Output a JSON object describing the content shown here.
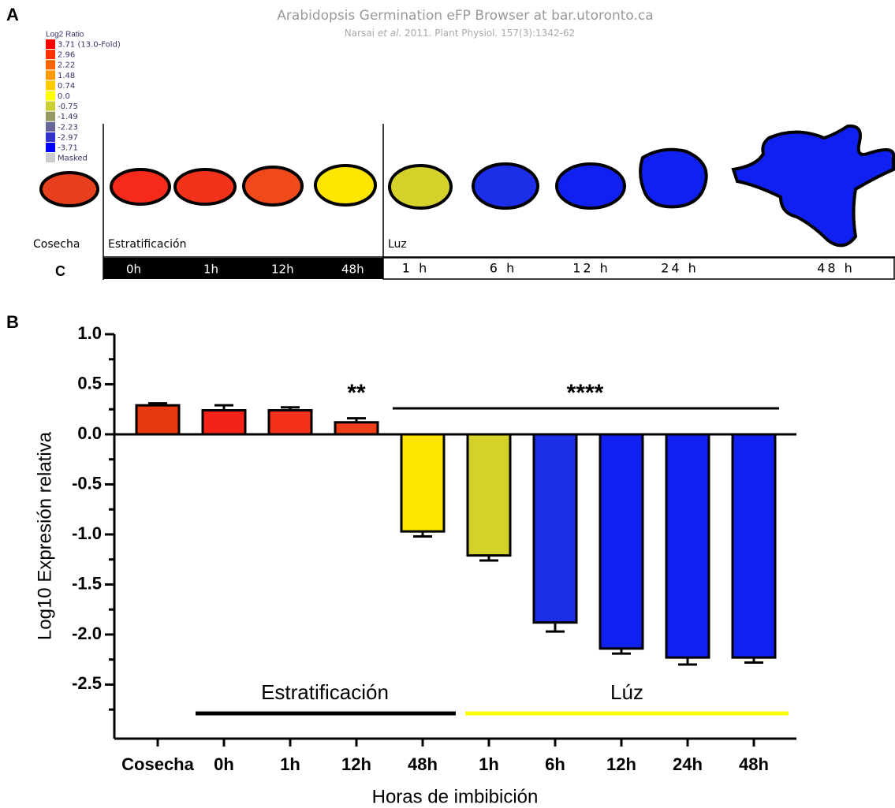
{
  "panel_a": {
    "letter": "A",
    "title": "Arabidopsis Germination eFP Browser at bar.utoronto.ca",
    "citation": [
      "Narsai ",
      "et al",
      ". 2011. Plant Physiol. 157(3):1342-62"
    ],
    "legend_title": "Log2 Ratio",
    "legend": [
      {
        "label": "3.71  (13.0-Fold)",
        "color": "#ff0000"
      },
      {
        "label": "2.96",
        "color": "#ff3300"
      },
      {
        "label": "2.22",
        "color": "#ff6600"
      },
      {
        "label": "1.48",
        "color": "#ff9900"
      },
      {
        "label": "0.74",
        "color": "#ffcc00"
      },
      {
        "label": "0.0",
        "color": "#ffff00"
      },
      {
        "label": "-0.75",
        "color": "#cccc33"
      },
      {
        "label": "-1.49",
        "color": "#999966"
      },
      {
        "label": "-2.23",
        "color": "#666699"
      },
      {
        "label": "-2.97",
        "color": "#3333cc"
      },
      {
        "label": "-3.71",
        "color": "#0000ff"
      },
      {
        "label": "Masked",
        "color": "#cccccc"
      }
    ],
    "groups": [
      "Cosecha",
      "Estratificación",
      "Luz"
    ],
    "row_label": "C",
    "strat_times": [
      "0h",
      "1h",
      "12h",
      "48h"
    ],
    "light_times": [
      "1 h",
      "6 h",
      "12 h",
      "24 h",
      "48 h"
    ]
  },
  "chart_data": {
    "type": "bar",
    "letter": "B",
    "y_label": "Log10 Expresión relativa",
    "x_label": "Horas de imbibición",
    "categories": [
      "Cosecha",
      "0h",
      "1h",
      "12h",
      "48h",
      "1h",
      "6h",
      "12h",
      "24h",
      "48h"
    ],
    "values": [
      0.29,
      0.24,
      0.24,
      0.12,
      -0.97,
      -1.21,
      -1.88,
      -2.14,
      -2.23,
      -2.23
    ],
    "errors": [
      0.02,
      0.05,
      0.03,
      0.04,
      0.05,
      0.05,
      0.09,
      0.05,
      0.07,
      0.05
    ],
    "colors": [
      "#e8380f",
      "#f5221a",
      "#f5301a",
      "#ef3f1a",
      "#ffe600",
      "#d4d22a",
      "#1c2ee8",
      "#1020f0",
      "#1020f0",
      "#1020f0"
    ],
    "ylim": [
      -3.04,
      1.0
    ],
    "yticks": [
      {
        "value": 1,
        "label": "1.0"
      },
      {
        "value": 0.5,
        "label": "0.5"
      },
      {
        "value": 0,
        "label": "0.0"
      },
      -0.5,
      {
        "value": -1,
        "label": "-1.0"
      },
      -1.5,
      {
        "value": -2,
        "label": "-2.0"
      },
      -2.5
    ],
    "yminorticks": [
      0.75,
      0.25,
      -0.25,
      -0.75,
      -1.25,
      -1.75,
      -2.25,
      -2.75
    ],
    "annotations": [
      "**",
      "****"
    ],
    "groups": [
      {
        "label": "Estratificación",
        "color": "#000000"
      },
      {
        "label": "Lúz",
        "color": "#ffff00"
      }
    ]
  }
}
